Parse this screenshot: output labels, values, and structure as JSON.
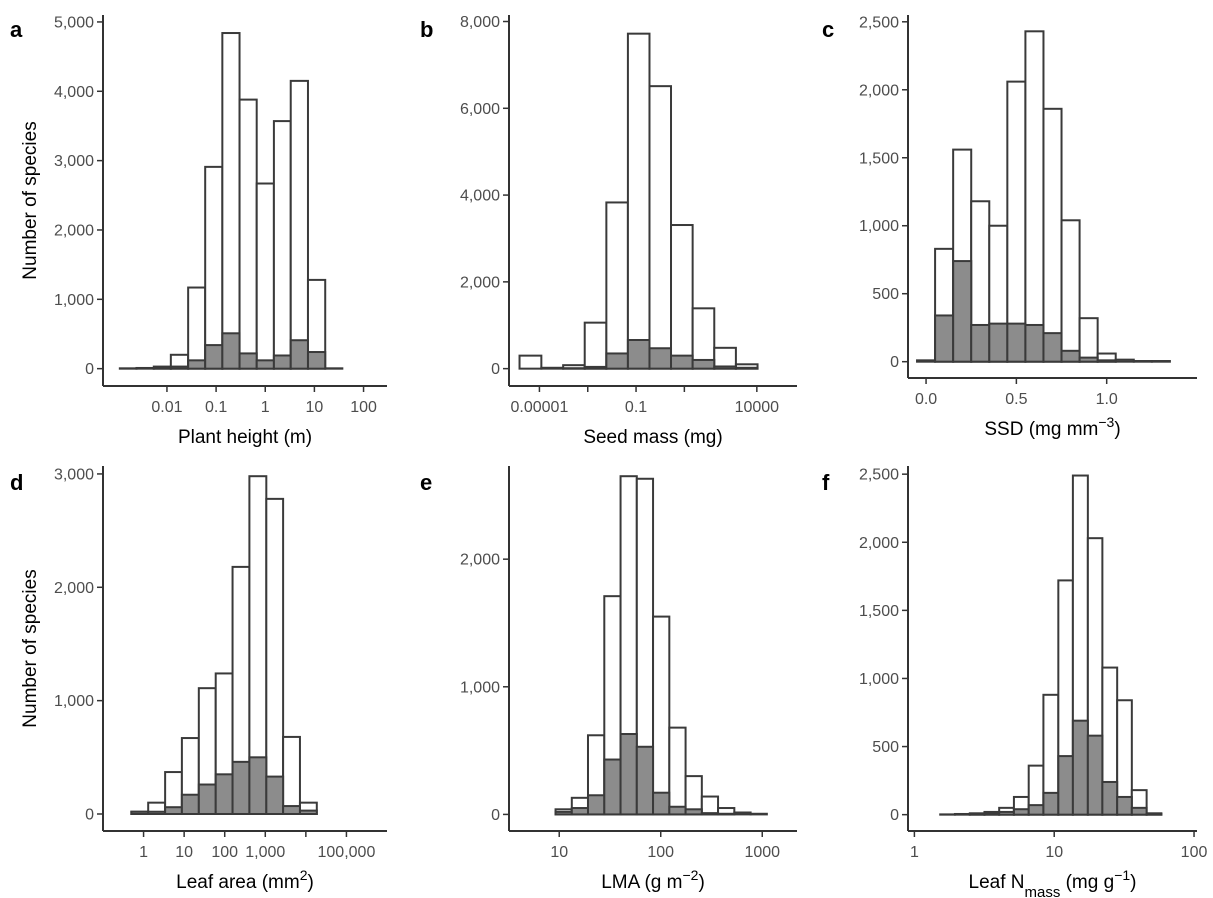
{
  "figure": {
    "colors": {
      "outline": "#3a3a3a",
      "total_fill": "#ffffff",
      "subset_fill": "#8c8c8c"
    }
  },
  "chart_data": [
    {
      "panel": "a",
      "type": "bar",
      "xscale": "log10",
      "xlabel": {
        "text": "Plant height (m)"
      },
      "ylabel": "Number of species",
      "x_ticks": [
        0.01,
        0.1,
        1,
        10,
        100
      ],
      "x_tick_labels": [
        "0.01",
        "0.1",
        "1",
        "10",
        "100"
      ],
      "y_ticks": [
        0,
        1000,
        2000,
        3000,
        4000,
        5000
      ],
      "y_tick_labels": [
        "0",
        "1,000",
        "2,000",
        "3,000",
        "4,000",
        "5,000"
      ],
      "xlim": [
        0.0005,
        300
      ],
      "ylim": [
        -250,
        5100
      ],
      "bin_edges": [
        0.0011,
        0.0024,
        0.0054,
        0.012,
        0.027,
        0.06,
        0.134,
        0.3,
        0.67,
        1.5,
        3.3,
        7.4,
        16.6,
        37,
        83
      ],
      "series": [
        {
          "name": "",
          "values": [
            5,
            10,
            30,
            200,
            1170,
            2910,
            4840,
            3880,
            2670,
            3570,
            4150,
            1280,
            5,
            0
          ]
        },
        {
          "name": "",
          "values": [
            0,
            0,
            10,
            30,
            120,
            340,
            510,
            220,
            120,
            190,
            410,
            240,
            0,
            0
          ]
        }
      ]
    },
    {
      "panel": "b",
      "type": "bar",
      "xscale": "log10",
      "xlabel": {
        "text": "Seed mass (mg)"
      },
      "ylabel": "",
      "x_ticks": [
        1e-05,
        0.1,
        10000
      ],
      "x_tick_labels": [
        "0.00001",
        "0.1",
        "10000"
      ],
      "minor_x_ticks": [
        0.001,
        10
      ],
      "y_ticks": [
        0,
        2000,
        4000,
        6000,
        8000
      ],
      "y_tick_labels": [
        "0",
        "2,000",
        "4,000",
        "6,000",
        "8,000"
      ],
      "xlim": [
        5.5e-07,
        460000
      ],
      "ylim": [
        -400,
        8150
      ],
      "bin_edges": [
        1.5e-06,
        1.2e-05,
        9.6e-05,
        0.00075,
        0.0059,
        0.046,
        0.36,
        2.8,
        22,
        173,
        1360,
        10700,
        84000
      ],
      "series": [
        {
          "name": "",
          "values": [
            300,
            20,
            80,
            1060,
            3830,
            7720,
            6510,
            3310,
            1390,
            480,
            100
          ]
        },
        {
          "name": "",
          "values": [
            0,
            0,
            10,
            40,
            350,
            660,
            470,
            300,
            200,
            50,
            20
          ]
        }
      ]
    },
    {
      "panel": "c",
      "type": "bar",
      "xscale": "linear",
      "xlabel": {
        "text": "SSD (mg mm",
        "sup": "−3",
        "suffix": ")"
      },
      "ylabel": "",
      "x_ticks": [
        0.0,
        0.5,
        1.0
      ],
      "x_tick_labels": [
        "0.0",
        "0.5",
        "1.0"
      ],
      "y_ticks": [
        0,
        500,
        1000,
        1500,
        2000,
        2500
      ],
      "y_tick_labels": [
        "0",
        "500",
        "1,000",
        "1,500",
        "2,000",
        "2,500"
      ],
      "xlim": [
        -0.1,
        1.5
      ],
      "ylim": [
        -120,
        2550
      ],
      "bin_edges": [
        -0.05,
        0.05,
        0.15,
        0.25,
        0.35,
        0.45,
        0.55,
        0.65,
        0.75,
        0.85,
        0.95,
        1.05,
        1.15,
        1.25,
        1.35,
        1.45
      ],
      "series": [
        {
          "name": "",
          "values": [
            10,
            830,
            1560,
            1180,
            1000,
            2060,
            2430,
            1860,
            1040,
            320,
            60,
            15,
            5,
            5
          ]
        },
        {
          "name": "",
          "values": [
            0,
            340,
            740,
            270,
            280,
            280,
            270,
            210,
            80,
            30,
            10,
            0,
            0,
            0
          ]
        }
      ]
    },
    {
      "panel": "d",
      "type": "bar",
      "xscale": "log10",
      "xlabel": {
        "text": "Leaf area  (mm",
        "sup": "2",
        "suffix": ")"
      },
      "ylabel": "Number of species",
      "x_ticks": [
        1,
        10,
        100,
        1000,
        100000
      ],
      "x_tick_labels": [
        "1",
        "10",
        "100",
        "1,000",
        "100,000"
      ],
      "minor_x_ticks": [
        10000
      ],
      "y_ticks": [
        0,
        1000,
        2000,
        3000
      ],
      "y_tick_labels": [
        "0",
        "1,000",
        "2,000",
        "3,000"
      ],
      "xlim": [
        0.1,
        1000000
      ],
      "ylim": [
        -150,
        3070
      ],
      "bin_edges": [
        0.5,
        1.3,
        3.4,
        8.8,
        23,
        60,
        156,
        406,
        1060,
        2750,
        7150,
        18600,
        48400,
        126000
      ],
      "series": [
        {
          "name": "",
          "values": [
            20,
            100,
            370,
            670,
            1110,
            1240,
            2180,
            2980,
            2780,
            680,
            100
          ]
        },
        {
          "name": "",
          "values": [
            20,
            20,
            60,
            170,
            260,
            350,
            460,
            500,
            330,
            70,
            30
          ]
        }
      ]
    },
    {
      "panel": "e",
      "type": "bar",
      "xscale": "log10",
      "xlabel": {
        "text": "LMA (g m",
        "sup": "−2",
        "suffix": ")"
      },
      "ylabel": "",
      "x_ticks": [
        10,
        100,
        1000
      ],
      "x_tick_labels": [
        "10",
        "100",
        "1000"
      ],
      "y_ticks": [
        0,
        1000,
        2000
      ],
      "y_tick_labels": [
        "0",
        "1,000",
        "2,000"
      ],
      "xlim": [
        3.2,
        2200
      ],
      "ylim": [
        -130,
        2730
      ],
      "bin_edges": [
        4.4,
        6.4,
        9.2,
        13.3,
        19.2,
        27.8,
        40.2,
        58.1,
        84,
        121.5,
        175.7,
        254,
        367,
        531,
        768,
        1110,
        1605
      ],
      "series": [
        {
          "name": "",
          "values": [
            0,
            0,
            40,
            130,
            620,
            1710,
            2650,
            2630,
            1550,
            680,
            300,
            140,
            50,
            15,
            5,
            0
          ]
        },
        {
          "name": "",
          "values": [
            0,
            0,
            20,
            50,
            150,
            430,
            630,
            530,
            170,
            60,
            40,
            10,
            5,
            0,
            0,
            0
          ]
        }
      ]
    },
    {
      "panel": "f",
      "type": "bar",
      "xscale": "log10",
      "xlabel": {
        "text": "Leaf N",
        "sub": "mass",
        "mid": "  (mg g",
        "sup": "−1",
        "suffix": ")"
      },
      "ylabel": "",
      "x_ticks": [
        1,
        10,
        100
      ],
      "x_tick_labels": [
        "1",
        "10",
        "100"
      ],
      "y_ticks": [
        0,
        500,
        1000,
        1500,
        2000,
        2500
      ],
      "y_tick_labels": [
        "0",
        "500",
        "1,000",
        "1,500",
        "2,000",
        "2,500"
      ],
      "xlim": [
        0.9,
        105
      ],
      "ylim": [
        -120,
        2560
      ],
      "bin_edges": [
        1.2,
        1.53,
        1.95,
        2.49,
        3.17,
        4.04,
        5.15,
        6.57,
        8.37,
        10.7,
        13.6,
        17.4,
        22.1,
        28.2,
        35.9,
        45.8,
        58.4,
        74.4
      ],
      "series": [
        {
          "name": "",
          "values": [
            0,
            2,
            5,
            10,
            20,
            50,
            130,
            360,
            880,
            1720,
            2490,
            2030,
            1080,
            840,
            180,
            10,
            0
          ]
        },
        {
          "name": "",
          "values": [
            0,
            0,
            0,
            5,
            10,
            20,
            40,
            70,
            160,
            430,
            690,
            580,
            240,
            130,
            50,
            5,
            0
          ]
        }
      ]
    }
  ]
}
